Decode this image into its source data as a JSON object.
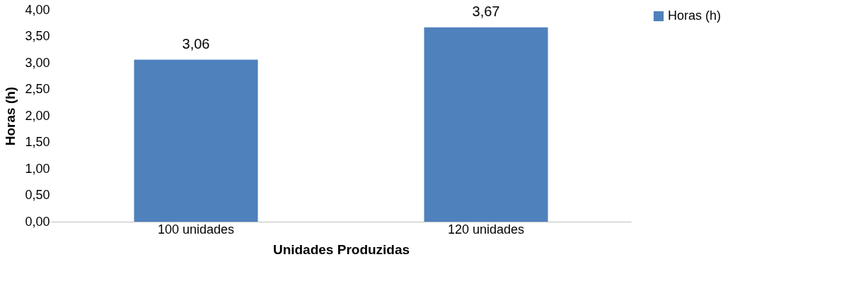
{
  "chart_data": {
    "type": "bar",
    "xlabel": "Unidades Produzidas",
    "ylabel": "Horas (h)",
    "categories": [
      "100 unidades",
      "120 unidades"
    ],
    "series": [
      {
        "name": "Horas (h)",
        "color": "#4f81bd",
        "values": [
          3.06,
          3.67
        ],
        "value_labels": [
          "3,06",
          "3,67"
        ]
      }
    ],
    "ylim": [
      0,
      4
    ],
    "yticks": [
      {
        "value": 0,
        "label": "0,00"
      },
      {
        "value": 0.5,
        "label": "0,50"
      },
      {
        "value": 1,
        "label": "1,00"
      },
      {
        "value": 1.5,
        "label": "1,50"
      },
      {
        "value": 2,
        "label": "2,00"
      },
      {
        "value": 2.5,
        "label": "2,50"
      },
      {
        "value": 3,
        "label": "3,00"
      },
      {
        "value": 3.5,
        "label": "3,50"
      },
      {
        "value": 4,
        "label": "4,00"
      }
    ],
    "grid": false,
    "legend": "right"
  }
}
